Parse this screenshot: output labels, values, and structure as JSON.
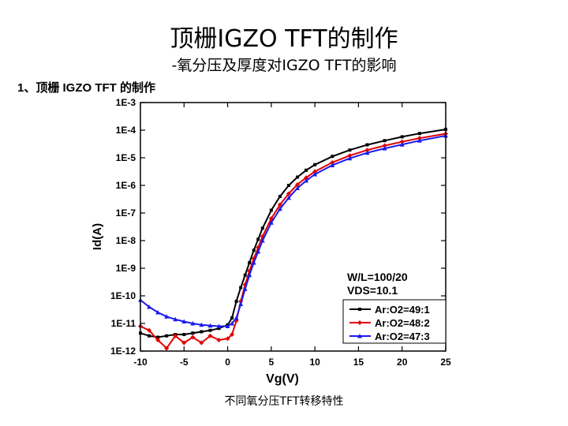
{
  "slide": {
    "title": "顶栅IGZO TFT的制作",
    "subtitle": "-氧分压及厚度对IGZO TFT的影响",
    "section_heading": "1、顶栅 IGZO TFT 的制作",
    "caption": "不同氧分压TFT转移特性"
  },
  "chart_data": {
    "type": "line",
    "title": "",
    "xlabel": "Vg(V)",
    "ylabel": "Id(A)",
    "xlim": [
      -10,
      25
    ],
    "ylim_log10": [
      -12,
      -3
    ],
    "yscale": "log",
    "xticks": [
      -10,
      -5,
      0,
      5,
      10,
      15,
      20,
      25
    ],
    "xtick_labels": [
      "-10",
      "-5",
      "0",
      "5",
      "10",
      "15",
      "20",
      "25"
    ],
    "yticks_log10": [
      -3,
      -4,
      -5,
      -6,
      -7,
      -8,
      -9,
      -10,
      -11,
      -12
    ],
    "ytick_labels": [
      "1E-3",
      "1E-4",
      "1E-5",
      "1E-6",
      "1E-7",
      "1E-8",
      "1E-9",
      "1E-10",
      "1E-11",
      "1E-12"
    ],
    "annotation_wl": "W/L=100/20",
    "annotation_vds": "VDS=10.1",
    "legend_position": "bottom-right",
    "series": [
      {
        "name": "Ar:O2=49:1",
        "color": "#000000",
        "marker": "square",
        "x": [
          -10,
          -9,
          -8,
          -7,
          -6,
          -5,
          -4,
          -3,
          -2,
          -1,
          0,
          0.5,
          1,
          1.5,
          2,
          2.5,
          3,
          3.5,
          4,
          5,
          6,
          7,
          8,
          9,
          10,
          12,
          14,
          16,
          18,
          20,
          22,
          25
        ],
        "y_log10": [
          -11.35,
          -11.45,
          -11.5,
          -11.45,
          -11.4,
          -11.4,
          -11.35,
          -11.3,
          -11.25,
          -11.18,
          -11.05,
          -10.8,
          -10.2,
          -9.7,
          -9.25,
          -8.8,
          -8.35,
          -7.95,
          -7.55,
          -6.9,
          -6.4,
          -6.0,
          -5.7,
          -5.45,
          -5.25,
          -4.95,
          -4.72,
          -4.53,
          -4.38,
          -4.24,
          -4.12,
          -3.97
        ]
      },
      {
        "name": "Ar:O2=48:2",
        "color": "#e00000",
        "marker": "diamond",
        "x": [
          -10,
          -9,
          -8,
          -7,
          -6,
          -5,
          -4,
          -3,
          -2,
          -1,
          0,
          0.5,
          1,
          1.5,
          2,
          2.5,
          3,
          3.5,
          4,
          5,
          6,
          7,
          8,
          9,
          10,
          12,
          14,
          16,
          18,
          20,
          22,
          25
        ],
        "y_log10": [
          -11.1,
          -11.25,
          -11.6,
          -11.9,
          -11.45,
          -11.7,
          -11.5,
          -11.7,
          -11.45,
          -11.6,
          -11.55,
          -11.4,
          -10.9,
          -10.2,
          -9.6,
          -9.1,
          -8.65,
          -8.25,
          -7.85,
          -7.2,
          -6.7,
          -6.3,
          -5.97,
          -5.72,
          -5.5,
          -5.17,
          -4.92,
          -4.72,
          -4.56,
          -4.42,
          -4.29,
          -4.13
        ]
      },
      {
        "name": "Ar:O2=47:3",
        "color": "#1a1aee",
        "marker": "triangle",
        "x": [
          -10,
          -9,
          -8,
          -7,
          -6,
          -5,
          -4,
          -3,
          -2,
          -1,
          0,
          0.5,
          1,
          1.5,
          2,
          2.5,
          3,
          3.5,
          4,
          5,
          6,
          7,
          8,
          9,
          10,
          12,
          14,
          16,
          18,
          20,
          22,
          25
        ],
        "y_log10": [
          -10.15,
          -10.4,
          -10.6,
          -10.75,
          -10.85,
          -10.93,
          -11.0,
          -11.05,
          -11.08,
          -11.1,
          -11.1,
          -11.0,
          -10.8,
          -10.3,
          -9.75,
          -9.25,
          -8.8,
          -8.4,
          -8.0,
          -7.35,
          -6.85,
          -6.45,
          -6.1,
          -5.83,
          -5.6,
          -5.27,
          -5.02,
          -4.82,
          -4.66,
          -4.52,
          -4.38,
          -4.2
        ]
      }
    ]
  }
}
